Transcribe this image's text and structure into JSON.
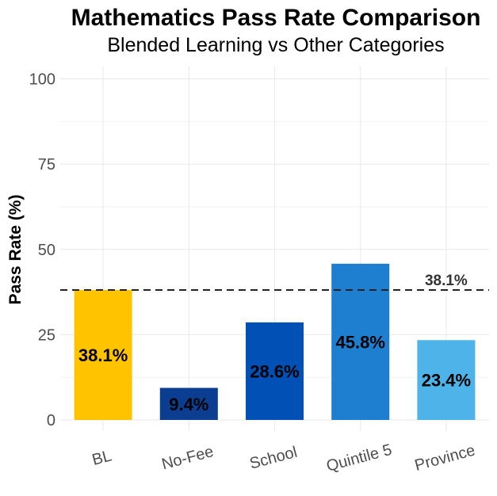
{
  "chart_data": {
    "type": "bar",
    "title": "Mathematics Pass Rate Comparison",
    "subtitle": "Blended Learning vs Other Categories",
    "xlabel": "",
    "ylabel": "Pass Rate (%)",
    "ylim": [
      0,
      100
    ],
    "yticks": [
      0,
      25,
      50,
      75,
      100
    ],
    "categories": [
      "BL",
      "No-Fee",
      "School",
      "Quintile 5",
      "Province"
    ],
    "values": [
      38.1,
      9.4,
      28.6,
      45.8,
      23.4
    ],
    "value_labels": [
      "38.1%",
      "9.4%",
      "28.6%",
      "45.8%",
      "23.4%"
    ],
    "colors": [
      "#FFC300",
      "#0B3D91",
      "#0050B5",
      "#1E7FD0",
      "#4EB3E8"
    ],
    "reference_line": {
      "value": 38.1,
      "label": "38.1%",
      "style": "dashed"
    },
    "grid": true,
    "legend": "none"
  }
}
